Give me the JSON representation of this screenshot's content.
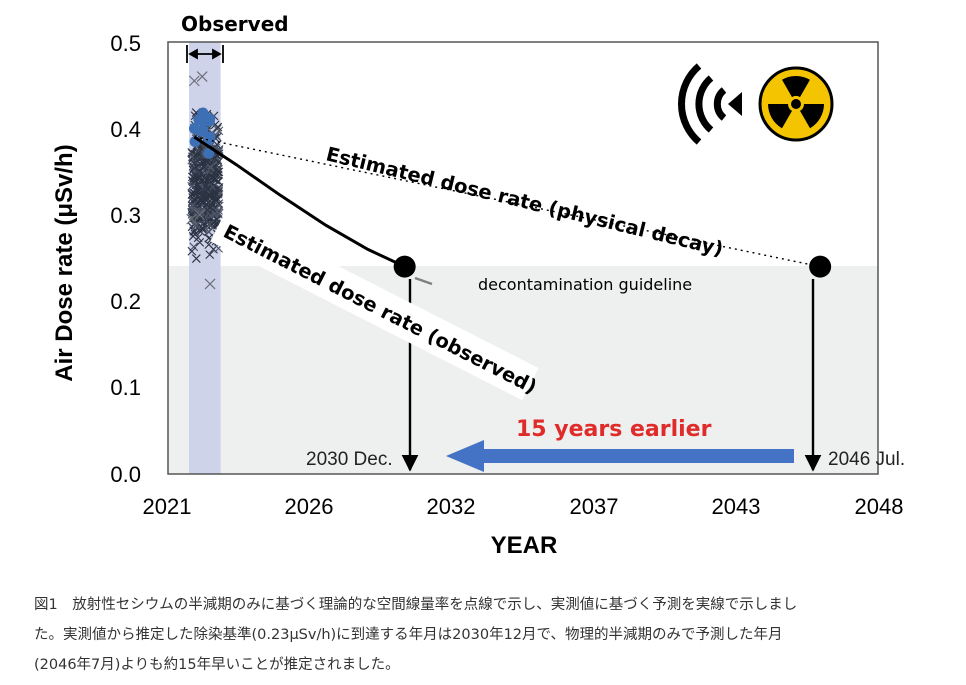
{
  "chart_data": {
    "type": "scatter",
    "ylabel": "Air Dose rate (μSv/h)",
    "xlabel": "YEAR",
    "x_ticks": [
      2021,
      2026,
      2032,
      2037,
      2043,
      2048
    ],
    "y_ticks": [
      "0.5",
      "0.4",
      "0.3",
      "0.2",
      "0.1",
      "0.0"
    ],
    "xlim": [
      2021,
      2048
    ],
    "ylim": [
      0,
      0.5
    ],
    "observed_label": "Observed",
    "observed_range": [
      2021.8,
      2023.0
    ],
    "guideline": {
      "value": 0.23,
      "label": "decontamination guideline"
    },
    "series": [
      {
        "name": "Estimated dose rate (physical decay)",
        "style": "dotted",
        "x": [
          2022.0,
          2045.8
        ],
        "y": [
          0.39,
          0.24
        ]
      },
      {
        "name": "Estimated dose rate (observed)",
        "style": "solid",
        "x": [
          2022.0,
          2023.6,
          2025.3,
          2027.0,
          2028.6,
          2030.0
        ],
        "y": [
          0.39,
          0.358,
          0.322,
          0.288,
          0.26,
          0.24
        ]
      }
    ],
    "annotations": {
      "observed_end": "2030 Dec.",
      "decay_end": "2046 Jul.",
      "difference": "15 years earlier"
    },
    "colors": {
      "observed_band": "#cfd3ea",
      "below_guideline": "#eef0ef",
      "observed_points": "#3d6fb5",
      "arrow": "#4472c4",
      "difference_text": "#e02b2b",
      "radiation_sign": "#f5c400"
    },
    "icons": [
      "radio-wave-icon",
      "radiation-trefoil-icon"
    ]
  },
  "caption": {
    "lines": [
      "図1　放射性セシウムの半減期のみに基づく理論的な空間線量率を点線で示し、実測値に基づく予測を実線で示しまし",
      "た。実測値から推定した除染基準(0.23μSv/h)に到達する年月は2030年12月で、物理的半減期のみで予測した年月",
      "(2046年7月)よりも約15年早いことが推定されました。"
    ]
  }
}
